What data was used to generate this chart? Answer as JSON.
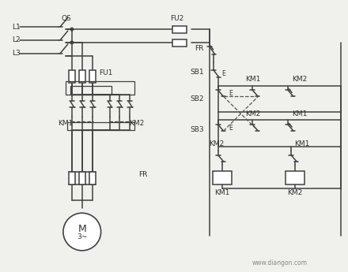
{
  "bg_color": "#f0f0ec",
  "line_color": "#404040",
  "text_color": "#303030",
  "fig_width": 4.4,
  "fig_height": 3.45,
  "dpi": 100,
  "watermark": "www.diangon.com",
  "labels": {
    "L1": "L1",
    "L2": "L2",
    "L3": "L3",
    "QS": "QS",
    "FU1": "FU1",
    "FU2": "FU2",
    "FR": "FR",
    "SB1": "SB1",
    "SB2": "SB2",
    "SB3": "SB3",
    "KM1": "KM1",
    "KM2": "KM2",
    "M": "M",
    "M3": "3~"
  }
}
